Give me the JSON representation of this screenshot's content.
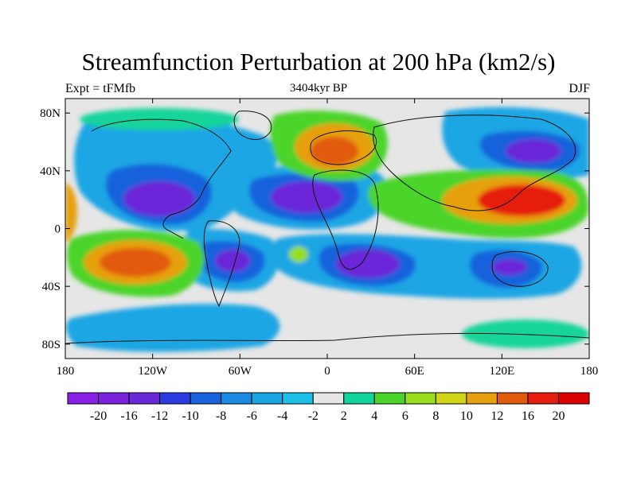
{
  "title": "Streamfunction Perturbation at 200 hPa (km2/s)",
  "left_label": "Expt = tFMfb",
  "center_label": "3404kyr BP",
  "right_label": "DJF",
  "map": {
    "projection": "cylindrical equidistant",
    "lon_range": [
      -180,
      180
    ],
    "lat_range": [
      -90,
      90
    ],
    "lat_ticks": [
      {
        "value": 80,
        "label": "80N"
      },
      {
        "value": 40,
        "label": "40N"
      },
      {
        "value": 0,
        "label": "0"
      },
      {
        "value": -40,
        "label": "40S"
      },
      {
        "value": -80,
        "label": "80S"
      }
    ],
    "lon_ticks": [
      {
        "value": -180,
        "label": "180"
      },
      {
        "value": -120,
        "label": "120W"
      },
      {
        "value": -60,
        "label": "60W"
      },
      {
        "value": 0,
        "label": "0"
      },
      {
        "value": 60,
        "label": "60E"
      },
      {
        "value": 120,
        "label": "120E"
      },
      {
        "value": 180,
        "label": "180"
      }
    ]
  },
  "colorbar": {
    "labels": [
      "-20",
      "-16",
      "-12",
      "-10",
      "-8",
      "-6",
      "-4",
      "-2",
      "2",
      "4",
      "6",
      "8",
      "10",
      "12",
      "16",
      "20"
    ],
    "colors": [
      "#8a1fe6",
      "#7a22dc",
      "#6a28d8",
      "#2a3be0",
      "#1862dc",
      "#1a8ae4",
      "#1aa6e4",
      "#1cc0e6",
      "#e6e6e6",
      "#12d49a",
      "#4cd42a",
      "#98de1c",
      "#d2d418",
      "#e6a010",
      "#e25a0c",
      "#e61c0e",
      "#dc0000"
    ]
  },
  "colors": {
    "background": "#ffffff",
    "neutral": "#e6e6e6",
    "coastline": "#111111"
  }
}
